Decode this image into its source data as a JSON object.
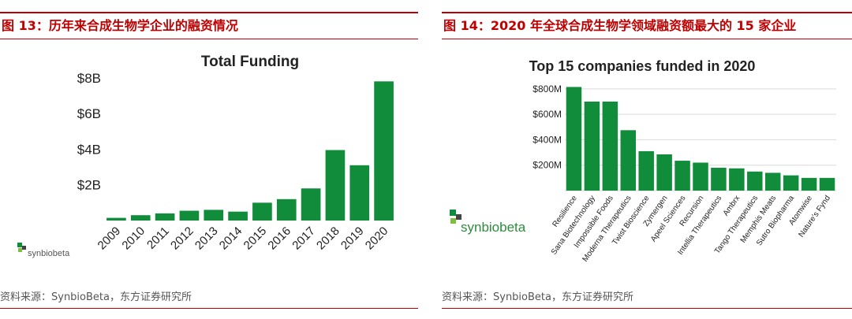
{
  "panels": {
    "left": {
      "figure_title": "图 13：历年来合成生物学企业的融资情况",
      "source": "资料来源：SynbioBeta，东方证券研究所",
      "logo_text": "synbiobeta"
    },
    "right": {
      "figure_title": "图 14：2020 年全球合成生物学领域融资额最大的 15 家企业",
      "source": "资料来源：SynbioBeta，东方证券研究所",
      "logo_text": "synbiobeta"
    }
  },
  "colors": {
    "bar": "#108c3a",
    "accent": "#c00000",
    "grid": "#d9d9d9"
  },
  "chart_data": [
    {
      "type": "bar",
      "title": "Total Funding",
      "categories": [
        "2009",
        "2010",
        "2011",
        "2012",
        "2013",
        "2014",
        "2015",
        "2016",
        "2017",
        "2018",
        "2019",
        "2020"
      ],
      "values": [
        0.15,
        0.3,
        0.4,
        0.55,
        0.6,
        0.5,
        1.0,
        1.2,
        1.8,
        3.95,
        3.1,
        7.8
      ],
      "yticks": [
        2,
        4,
        6,
        8
      ],
      "ytick_labels": [
        "$2B",
        "$4B",
        "$6B",
        "$8B"
      ],
      "ylim": [
        0,
        8.3
      ],
      "ylabel": "",
      "xlabel": "",
      "grid": false
    },
    {
      "type": "bar",
      "title": "Top 15 companies funded in 2020",
      "categories": [
        "Resilience",
        "Sana Biotechnology",
        "Impossible Foods",
        "Moderna Therapeutics",
        "Twist Bioscience",
        "Zymergen",
        "Apeel Sciences",
        "Recursion",
        "Intellia Therapeutics",
        "Ambrx",
        "Tango Therapeutics",
        "Memphis Meats",
        "Sutro Biopharma",
        "Atomwise",
        "Nature's Fynd"
      ],
      "values": [
        815,
        700,
        700,
        475,
        310,
        285,
        235,
        220,
        180,
        175,
        150,
        140,
        120,
        100,
        100
      ],
      "yticks": [
        200,
        400,
        600,
        800
      ],
      "ytick_labels": [
        "$200M",
        "$400M",
        "$600M",
        "$800M"
      ],
      "ylim": [
        0,
        830
      ],
      "ylabel": "",
      "xlabel": "",
      "grid": true
    }
  ]
}
